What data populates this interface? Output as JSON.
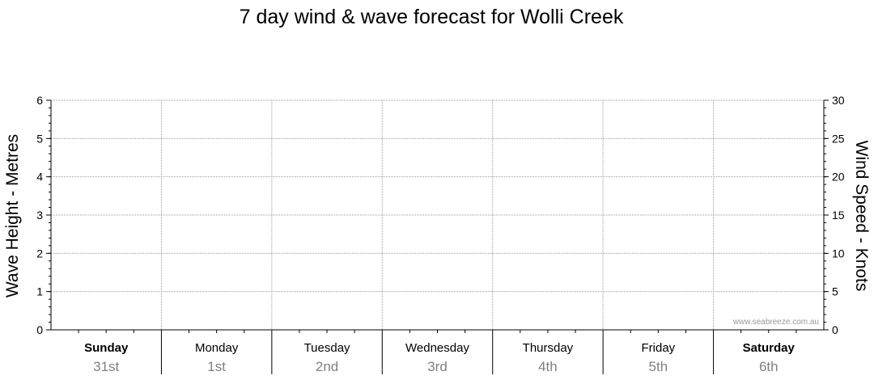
{
  "chart_data": {
    "type": "line",
    "title": "7 day wind & wave forecast for Wolli Creek",
    "ylabel_left": "Wave Height - Metres",
    "ylabel_right": "Wind Speed - Knots",
    "ylim_left": [
      0,
      6
    ],
    "ylim_right": [
      0,
      30
    ],
    "yticks_left": [
      "0",
      "1",
      "2",
      "3",
      "4",
      "5",
      "6"
    ],
    "yticks_right": [
      "0",
      "5",
      "10",
      "15",
      "20",
      "25",
      "30"
    ],
    "grid": true,
    "categories": [
      {
        "day": "Sunday",
        "date": "31st",
        "bold": true
      },
      {
        "day": "Monday",
        "date": "1st",
        "bold": false
      },
      {
        "day": "Tuesday",
        "date": "2nd",
        "bold": false
      },
      {
        "day": "Wednesday",
        "date": "3rd",
        "bold": false
      },
      {
        "day": "Thursday",
        "date": "4th",
        "bold": false
      },
      {
        "day": "Friday",
        "date": "5th",
        "bold": false
      },
      {
        "day": "Saturday",
        "date": "6th",
        "bold": true
      }
    ],
    "series": [],
    "watermark": "www.seabreeze.com.au"
  }
}
